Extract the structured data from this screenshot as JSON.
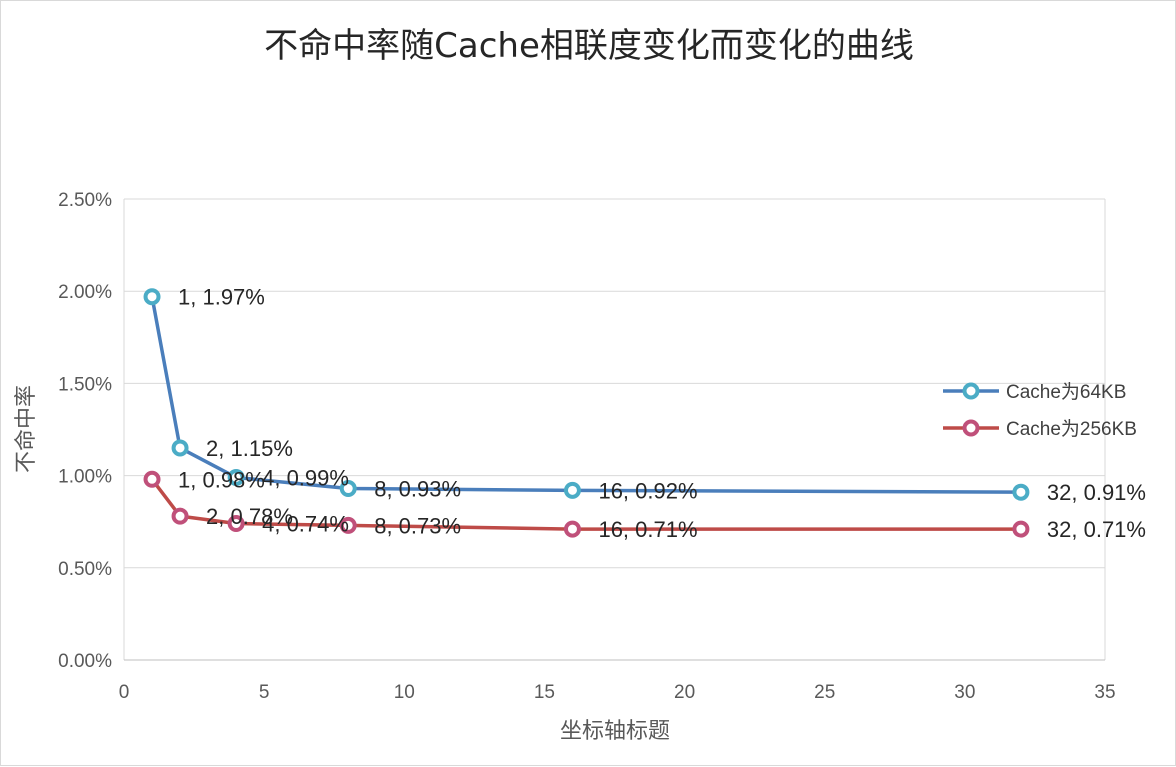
{
  "chart_data": {
    "type": "scatter",
    "title": "不命中率随Cache相联度变化而变化的曲线",
    "xlabel": "坐标轴标题",
    "ylabel": "不命中率",
    "xlim": [
      0,
      35
    ],
    "ylim": [
      0,
      0.025
    ],
    "x_ticks": [
      "0",
      "5",
      "10",
      "15",
      "20",
      "25",
      "30",
      "35"
    ],
    "y_ticks": [
      "0.00%",
      "0.50%",
      "1.00%",
      "1.50%",
      "2.00%",
      "2.50%"
    ],
    "grid": "horizontal",
    "legend_position": "right",
    "series": [
      {
        "name": "Cache为64KB",
        "color": "#4a7ebb",
        "marker_color": "#4bacc6",
        "x": [
          1,
          2,
          4,
          8,
          16,
          32
        ],
        "y": [
          0.0197,
          0.0115,
          0.0099,
          0.0093,
          0.0092,
          0.0091
        ],
        "labels": [
          "1, 1.97%",
          "2, 1.15%",
          "4, 0.99%",
          "8, 0.93%",
          "16, 0.92%",
          "32, 0.91%"
        ]
      },
      {
        "name": "Cache为256KB",
        "color": "#be4b48",
        "marker_color": "#c0507a",
        "x": [
          1,
          2,
          4,
          8,
          16,
          32
        ],
        "y": [
          0.0098,
          0.0078,
          0.0074,
          0.0073,
          0.0071,
          0.0071
        ],
        "labels": [
          "1, 0.98%",
          "2, 0.78%",
          "4, 0.74%",
          "8, 0.73%",
          "16, 0.71%",
          "32, 0.71%"
        ]
      }
    ]
  }
}
